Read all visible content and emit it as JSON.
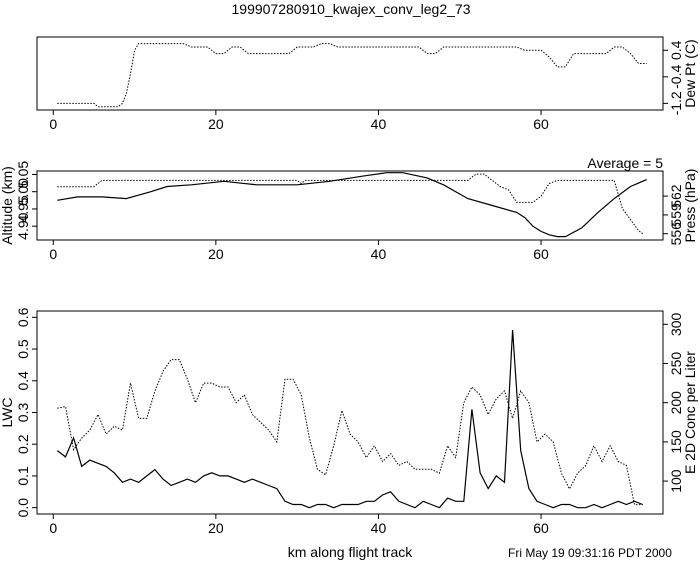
{
  "title": "199907280910_kwajex_conv_leg2_73",
  "footer": "Fri May 19 09:31:16 PDT 2000",
  "chart_data": [
    {
      "type": "line",
      "name": "dew-point",
      "xlim": [
        -2,
        75
      ],
      "ylim": [
        -1.4,
        0.8
      ],
      "x_ticks": [
        "0",
        "20",
        "40",
        "60"
      ],
      "x_tick_values": [
        0,
        20,
        40,
        60
      ],
      "right_ticks": [
        "-1.2",
        "-0.4",
        "0.4"
      ],
      "right_tick_values": [
        -1.2,
        -0.4,
        0.4
      ],
      "right_label": "Dew Pt (C)",
      "series": [
        {
          "style": "dotted",
          "axis": "right",
          "x": [
            0.5,
            5,
            5.5,
            8,
            8.5,
            9,
            9.5,
            10,
            10.5,
            11,
            16,
            17,
            19,
            20,
            21,
            22,
            23,
            24,
            25,
            29,
            30,
            31,
            32,
            33,
            34,
            35,
            36,
            45,
            46,
            47,
            48,
            49,
            50,
            55,
            56,
            57,
            58,
            59,
            60,
            61,
            62,
            63,
            64,
            68,
            69,
            70,
            71,
            72,
            73
          ],
          "y": [
            -1.2,
            -1.2,
            -1.3,
            -1.3,
            -1.2,
            -0.9,
            -0.3,
            0.4,
            0.6,
            0.6,
            0.6,
            0.5,
            0.5,
            0.3,
            0.3,
            0.5,
            0.5,
            0.3,
            0.3,
            0.3,
            0.5,
            0.5,
            0.5,
            0.6,
            0.6,
            0.5,
            0.5,
            0.5,
            0.3,
            0.3,
            0.5,
            0.5,
            0.5,
            0.5,
            0.5,
            0.5,
            0.4,
            0.4,
            0.4,
            0.2,
            -0.1,
            -0.1,
            0.3,
            0.3,
            0.5,
            0.5,
            0.3,
            0.0,
            0.0
          ]
        }
      ]
    },
    {
      "type": "line",
      "name": "altitude-pressure",
      "annotation": "Average = 5",
      "xlim": [
        -2,
        75
      ],
      "ylim": [
        4.86,
        5.06
      ],
      "x_ticks": [
        "0",
        "20",
        "40",
        "60"
      ],
      "x_tick_values": [
        0,
        20,
        40,
        60
      ],
      "left_ticks": [
        "4.90",
        "4.95",
        "5.00",
        "5.05"
      ],
      "left_tick_values": [
        4.9,
        4.95,
        5.0,
        5.05
      ],
      "left_label": "Altitude (km)",
      "right_ticks": [
        "556",
        "559",
        "562"
      ],
      "right_tick_values": [
        556,
        559,
        562
      ],
      "right_label": "Press (hPa)",
      "right_ylim": [
        555,
        566
      ],
      "series": [
        {
          "style": "solid",
          "axis": "left",
          "x": [
            0.5,
            3,
            6,
            9,
            12,
            14,
            17,
            21,
            25,
            30,
            34,
            38,
            41,
            43,
            46,
            48,
            51,
            54,
            57,
            58,
            59,
            60,
            61,
            62,
            63,
            65,
            67,
            69,
            71,
            73
          ],
          "y": [
            4.975,
            4.985,
            4.985,
            4.98,
            5.0,
            5.015,
            5.02,
            5.03,
            5.02,
            5.02,
            5.03,
            5.045,
            5.055,
            5.055,
            5.04,
            5.02,
            4.98,
            4.96,
            4.94,
            4.925,
            4.9,
            4.885,
            4.875,
            4.87,
            4.87,
            4.895,
            4.94,
            4.98,
            5.015,
            5.035
          ]
        },
        {
          "style": "dotted",
          "axis": "right",
          "x": [
            0.5,
            5,
            5.5,
            6,
            30,
            30.5,
            31,
            51,
            52,
            53,
            54,
            55,
            56,
            57,
            58,
            59,
            60,
            60.5,
            61,
            62,
            63,
            69,
            70,
            72,
            72.5
          ],
          "y": [
            563.5,
            563.5,
            564.0,
            564.5,
            564.5,
            564.0,
            564.5,
            564.5,
            565.5,
            565.5,
            564.5,
            563.5,
            563.0,
            561.0,
            561.0,
            561.0,
            562.0,
            563.0,
            564.0,
            564.5,
            564.5,
            564.5,
            560.0,
            556.5,
            556.0
          ]
        }
      ]
    },
    {
      "type": "line",
      "name": "lwc-conc",
      "xlabel": "km along flight track",
      "xlim": [
        -2,
        75
      ],
      "ylim": [
        -0.02,
        0.62
      ],
      "x_ticks": [
        "0",
        "20",
        "40",
        "60"
      ],
      "x_tick_values": [
        0,
        20,
        40,
        60
      ],
      "left_ticks": [
        "0.0",
        "0.1",
        "0.2",
        "0.3",
        "0.4",
        "0.5",
        "0.6"
      ],
      "left_tick_values": [
        0.0,
        0.1,
        0.2,
        0.3,
        0.4,
        0.5,
        0.6
      ],
      "left_label": "LWC",
      "right_ticks": [
        "100",
        "150",
        "200",
        "250",
        "300"
      ],
      "right_tick_values": [
        100,
        150,
        200,
        250,
        300
      ],
      "right_label": "E 2D Conc per Liter",
      "right_ylim": [
        58,
        317
      ],
      "series": [
        {
          "style": "solid",
          "axis": "left",
          "x": [
            0.5,
            1.5,
            2.5,
            3.5,
            4.5,
            5.5,
            6.5,
            7.5,
            8.5,
            9.5,
            10.5,
            11.5,
            12.5,
            13.5,
            14.5,
            15.5,
            16.5,
            17.5,
            18.5,
            19.5,
            20.5,
            21.5,
            22.5,
            23.5,
            24.5,
            25.5,
            26.5,
            27.5,
            28.5,
            29.5,
            30.5,
            31.5,
            32.5,
            33.5,
            34.5,
            35.5,
            36.5,
            37.5,
            38.5,
            39.5,
            40.5,
            41.5,
            42.5,
            43.5,
            44.5,
            45.5,
            46.5,
            47.5,
            48.5,
            49.5,
            50.5,
            51.5,
            52.5,
            53.5,
            54.5,
            55.5,
            56.5,
            57.5,
            58.5,
            59.5,
            60.5,
            61.5,
            62.5,
            63.5,
            64.5,
            65.5,
            66.5,
            67.5,
            68.5,
            69.5,
            70.5,
            71.5,
            72.5
          ],
          "y": [
            0.18,
            0.16,
            0.22,
            0.13,
            0.15,
            0.14,
            0.13,
            0.11,
            0.08,
            0.09,
            0.08,
            0.1,
            0.12,
            0.09,
            0.07,
            0.08,
            0.09,
            0.08,
            0.1,
            0.11,
            0.1,
            0.1,
            0.09,
            0.08,
            0.09,
            0.08,
            0.07,
            0.06,
            0.02,
            0.01,
            0.01,
            0.0,
            0.01,
            0.01,
            0.0,
            0.01,
            0.01,
            0.01,
            0.02,
            0.02,
            0.04,
            0.05,
            0.02,
            0.01,
            0.0,
            0.02,
            0.01,
            0.0,
            0.03,
            0.02,
            0.02,
            0.31,
            0.11,
            0.06,
            0.1,
            0.08,
            0.56,
            0.18,
            0.06,
            0.02,
            0.01,
            0.0,
            0.01,
            0.01,
            0.0,
            0.0,
            0.01,
            0.0,
            0.01,
            0.02,
            0.01,
            0.02,
            0.01
          ]
        },
        {
          "style": "dotted",
          "axis": "right",
          "x": [
            0.5,
            1.5,
            2.5,
            3.5,
            4.5,
            5.5,
            6.5,
            7.5,
            8.5,
            9.5,
            10.5,
            11.5,
            12.5,
            13.5,
            14.5,
            15.5,
            16.5,
            17.5,
            18.5,
            19.5,
            20.5,
            21.5,
            22.5,
            23.5,
            24.5,
            25.5,
            26.5,
            27.5,
            28.5,
            29.5,
            30.5,
            31.5,
            32.5,
            33.5,
            34.5,
            35.5,
            36.5,
            37.5,
            38.5,
            39.5,
            40.5,
            41.5,
            42.5,
            43.5,
            44.5,
            45.5,
            46.5,
            47.5,
            48.5,
            49.5,
            50.5,
            51.5,
            52.5,
            53.5,
            54.5,
            55.5,
            56.5,
            57.5,
            58.5,
            59.5,
            60.5,
            61.5,
            62.5,
            63.5,
            64.5,
            65.5,
            66.5,
            67.5,
            68.5,
            69.5,
            70.5,
            71.5,
            72.5
          ],
          "y": [
            193,
            195,
            140,
            155,
            165,
            185,
            160,
            170,
            165,
            225,
            180,
            180,
            215,
            240,
            255,
            255,
            230,
            200,
            225,
            225,
            220,
            220,
            200,
            210,
            185,
            175,
            165,
            150,
            230,
            230,
            210,
            155,
            115,
            108,
            145,
            190,
            160,
            150,
            130,
            145,
            125,
            135,
            120,
            125,
            115,
            115,
            115,
            110,
            145,
            130,
            200,
            220,
            210,
            185,
            205,
            215,
            180,
            215,
            200,
            150,
            160,
            150,
            110,
            90,
            110,
            120,
            145,
            125,
            145,
            125,
            120,
            70,
            70
          ]
        }
      ]
    }
  ]
}
